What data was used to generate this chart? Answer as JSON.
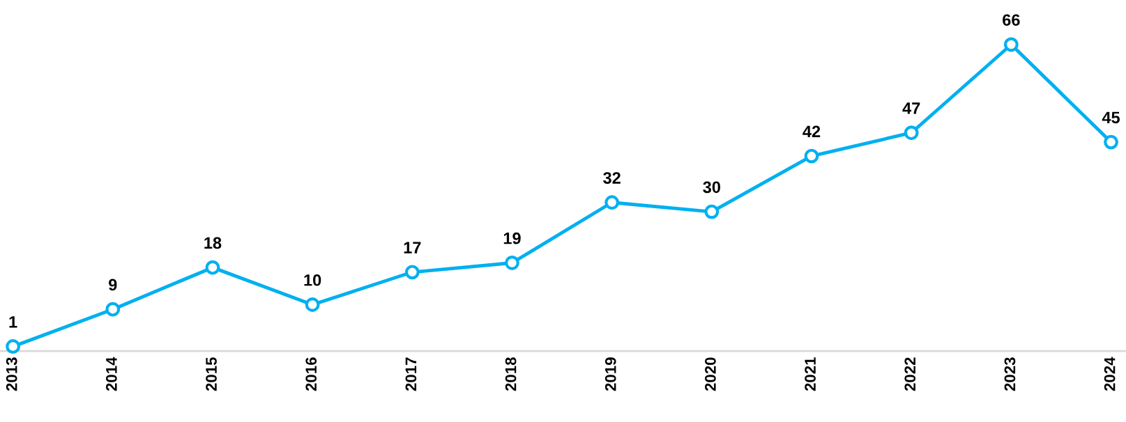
{
  "chart_data": {
    "type": "line",
    "categories": [
      "2013",
      "2014",
      "2015",
      "2016",
      "2017",
      "2018",
      "2019",
      "2020",
      "2021",
      "2022",
      "2023",
      "2024"
    ],
    "series": [
      {
        "color": "#00b0f0",
        "values": [
          1,
          9,
          18,
          10,
          17,
          19,
          32,
          30,
          42,
          47,
          66,
          45
        ]
      }
    ],
    "tick_labels": "x",
    "data_labels": true,
    "marker": "circle",
    "line_style": "solid",
    "grid": false,
    "legend": false
  }
}
